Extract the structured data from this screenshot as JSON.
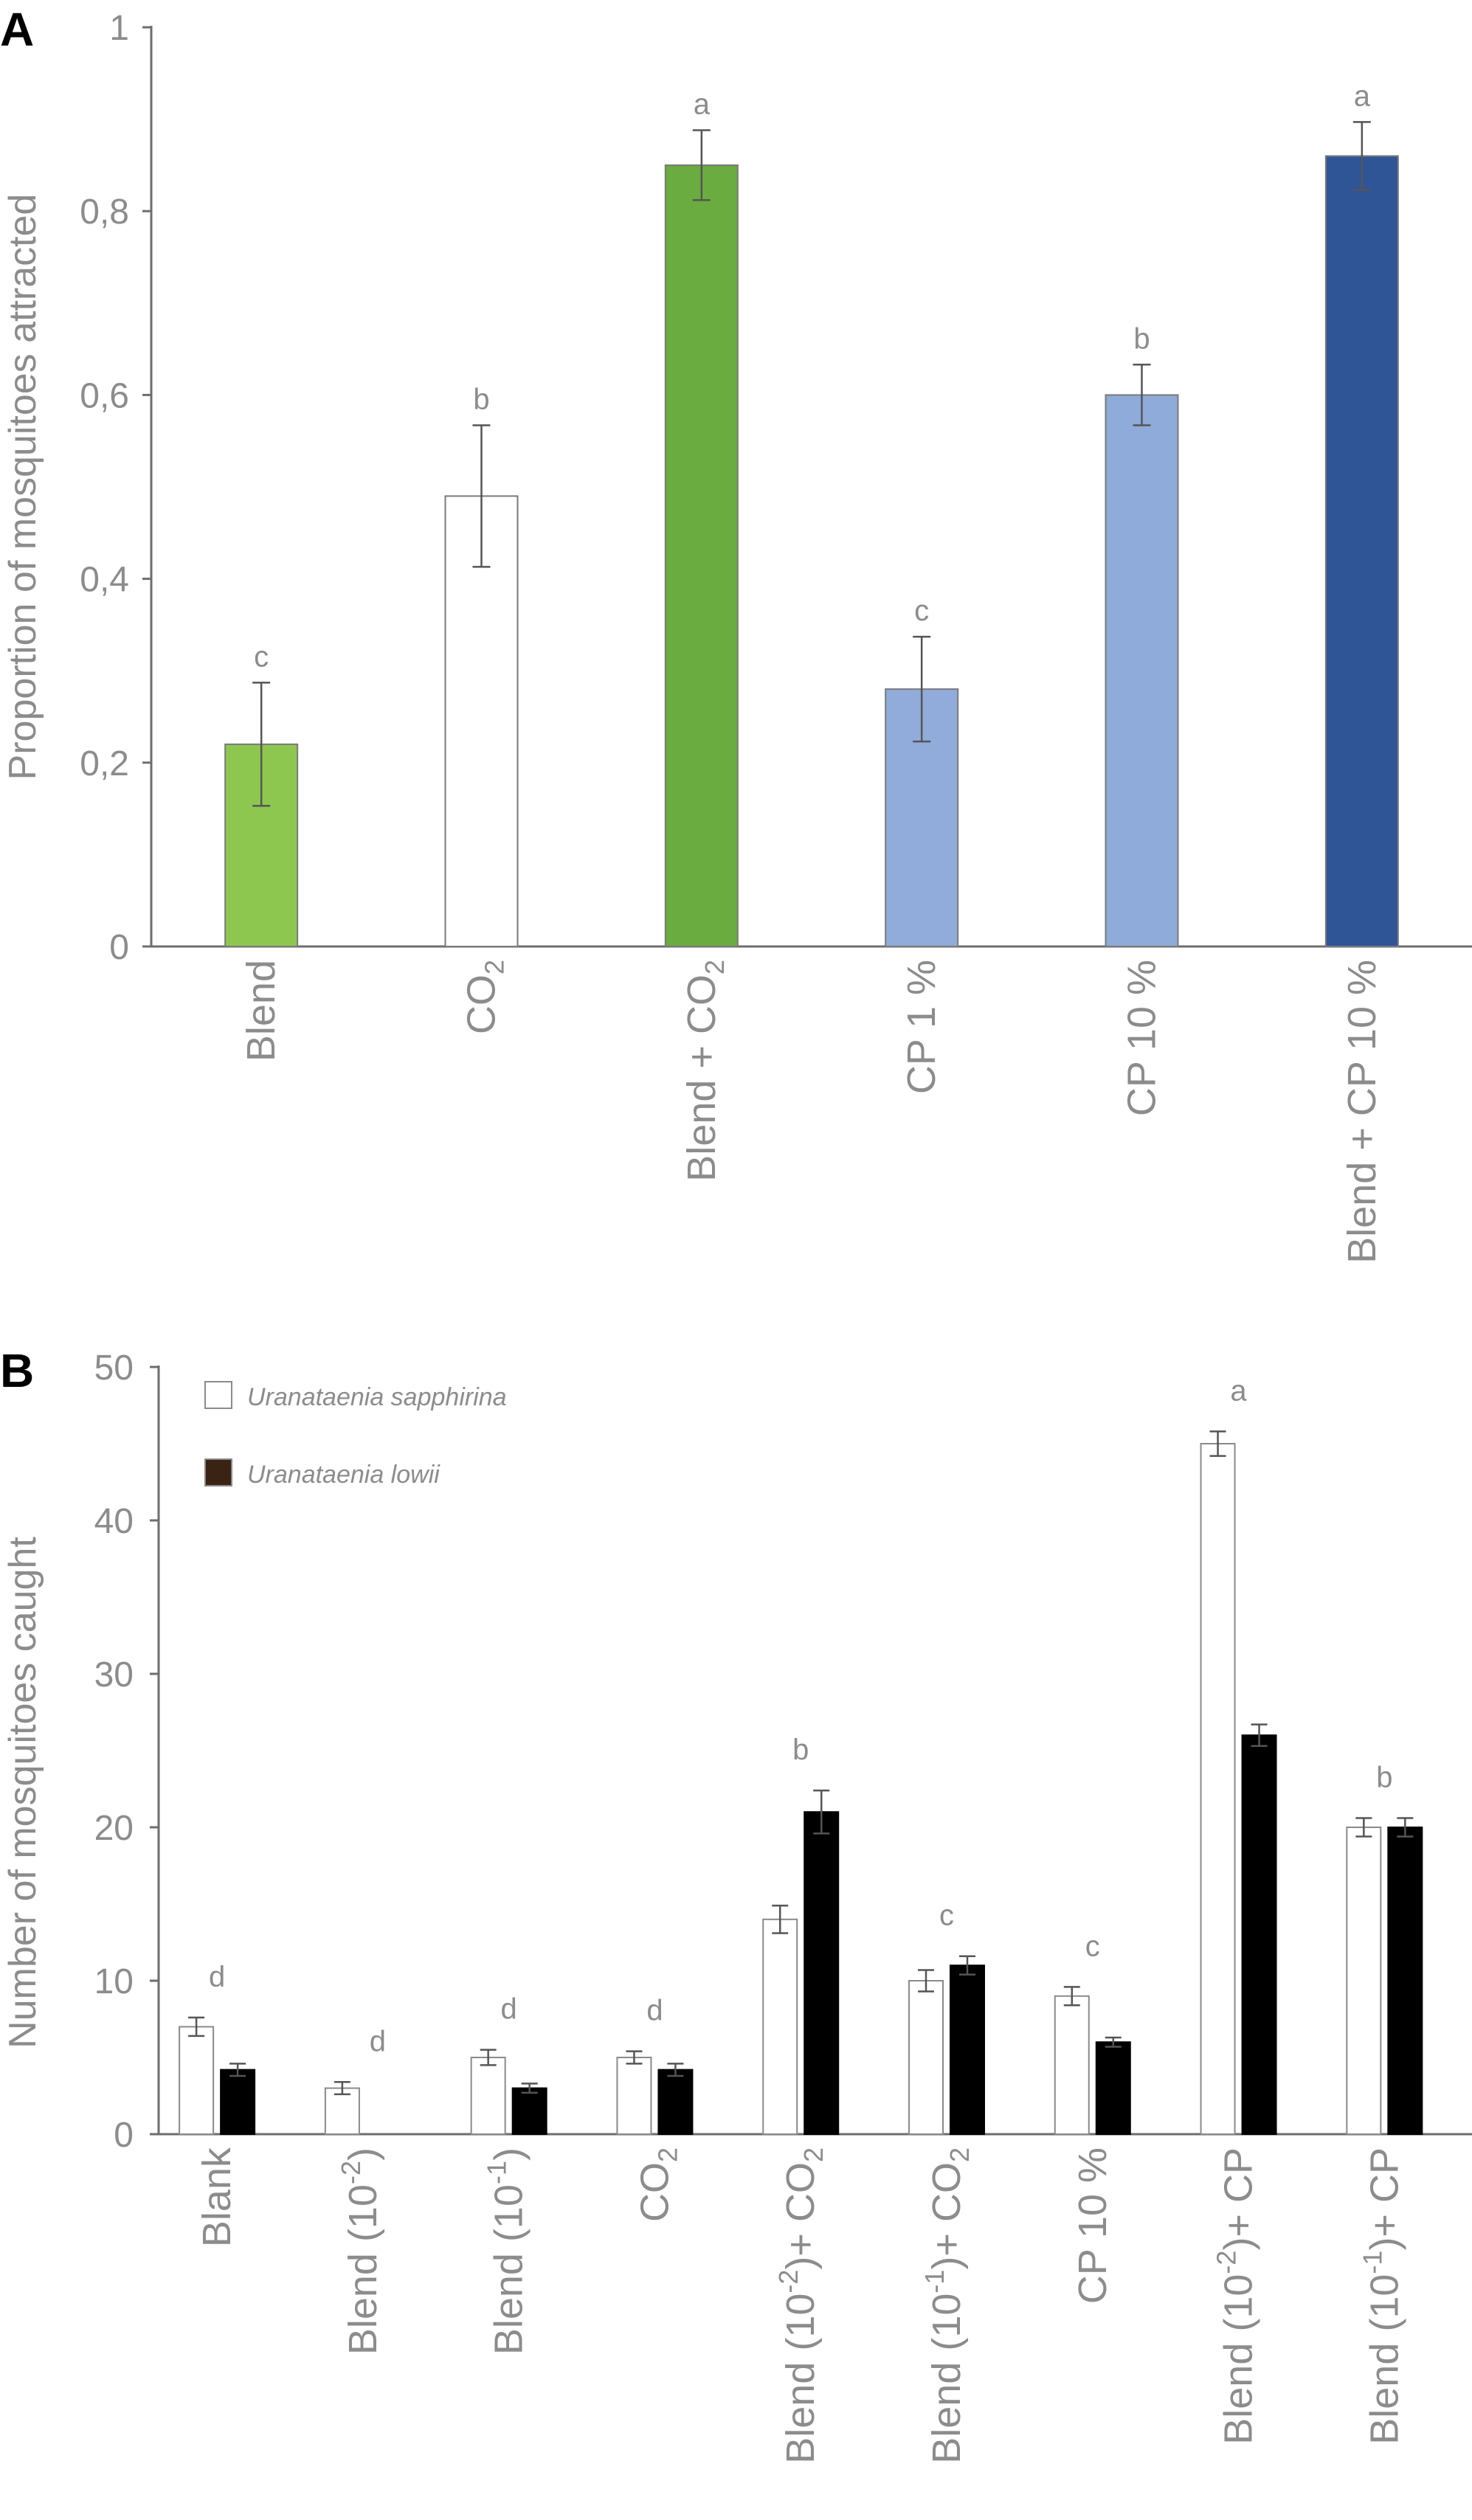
{
  "chart_data": [
    {
      "panel": "A",
      "type": "bar",
      "ylabel": "Proportion of mosquitoes attracted",
      "ylim": [
        0,
        1
      ],
      "yticks": [
        "0",
        "0,2",
        "0,4",
        "0,6",
        "0,8",
        "1"
      ],
      "categories": [
        {
          "label": "Blend",
          "sub": ""
        },
        {
          "label": "CO",
          "sub": "2"
        },
        {
          "label": "Blend + CO",
          "sub": "2"
        },
        {
          "label": "CP 1 %",
          "sub": ""
        },
        {
          "label": "CP 10 %",
          "sub": ""
        },
        {
          "label": "Blend + CP 10 %",
          "sub": ""
        }
      ],
      "values": [
        0.22,
        0.49,
        0.85,
        0.28,
        0.6,
        0.86
      ],
      "errors": [
        0.067,
        0.077,
        0.038,
        0.057,
        0.033,
        0.037
      ],
      "significance": [
        "c",
        "b",
        "a",
        "c",
        "b",
        "a"
      ],
      "colors": [
        "#8dc74f",
        "#ffffff",
        "#6aac3f",
        "#91abda",
        "#8eabd9",
        "#2f5597"
      ]
    },
    {
      "panel": "B",
      "type": "bar",
      "ylabel": "Number of mosquitoes caught",
      "ylim": [
        0,
        50
      ],
      "yticks": [
        "0",
        "10",
        "20",
        "30",
        "40",
        "50"
      ],
      "legend": [
        {
          "name": "Uranataenia sapphirina",
          "color": "#ffffff"
        },
        {
          "name": "Uranataenia lowii",
          "color": "#3b2314"
        }
      ],
      "categories": [
        {
          "parts": [
            "Blank"
          ]
        },
        {
          "parts": [
            "Blend (10",
            "-2",
            ")"
          ]
        },
        {
          "parts": [
            "Blend (10",
            "-1",
            ")"
          ]
        },
        {
          "parts": [
            "CO",
            "2"
          ]
        },
        {
          "parts": [
            "Blend (10",
            "-2",
            ")+ CO",
            "2"
          ]
        },
        {
          "parts": [
            "Blend (10",
            "-1",
            ")+ CO",
            "2"
          ]
        },
        {
          "parts": [
            "CP 10 %"
          ]
        },
        {
          "parts": [
            "Blend (10",
            "-2",
            ")+ CP"
          ]
        },
        {
          "parts": [
            "Blend (10",
            "-1",
            ")+ CP"
          ]
        }
      ],
      "series": [
        {
          "name": "Uranataenia sapphirina",
          "values": [
            7,
            3,
            5,
            5,
            14,
            10,
            9,
            45,
            20
          ],
          "errors": [
            0.6,
            0.4,
            0.5,
            0.4,
            0.9,
            0.7,
            0.6,
            0.8,
            0.6
          ]
        },
        {
          "name": "Uranataenia lowii",
          "values": [
            4.2,
            0,
            3,
            4.2,
            21,
            11,
            6,
            26,
            20
          ],
          "errors": [
            0.4,
            0,
            0.3,
            0.4,
            1.4,
            0.6,
            0.3,
            0.7,
            0.6
          ]
        }
      ],
      "significance": [
        "d",
        "d",
        "d",
        "d",
        "b",
        "c",
        "c",
        "a",
        "b"
      ]
    }
  ]
}
